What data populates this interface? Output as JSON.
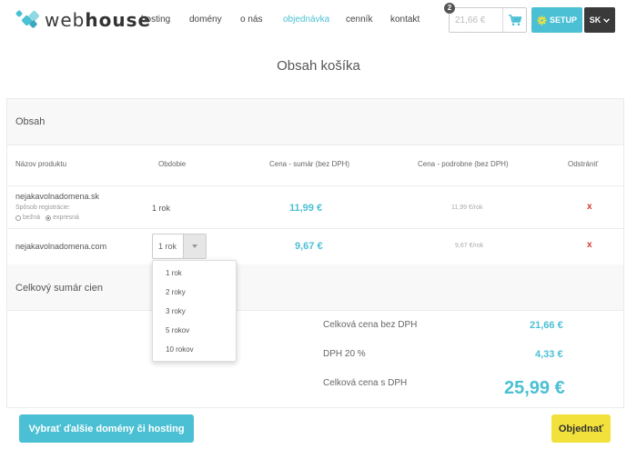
{
  "header": {
    "logo_text_light": "web",
    "logo_text_bold": "house",
    "nav": [
      {
        "label": "hosting",
        "active": false
      },
      {
        "label": "domény",
        "active": false
      },
      {
        "label": "o nás",
        "active": false
      },
      {
        "label": "objednávka",
        "active": true
      },
      {
        "label": "cenník",
        "active": false
      },
      {
        "label": "kontakt",
        "active": false
      }
    ],
    "cart_badge": "2",
    "cart_amount": "21,66 €",
    "setup_label": "SETUP",
    "lang_label": "SK",
    "cart_icon": "cart-icon",
    "setup_icon": "gear-icon"
  },
  "page_title": "Obsah košíka",
  "content": {
    "section_title": "Obsah",
    "columns": [
      "Názov produktu",
      "Obdobie",
      "Cena - sumár (bez DPH)",
      "Cena - podrobne (bez DPH)",
      "Odstrániť"
    ],
    "rows": [
      {
        "product": "nejakavolnadomena.sk",
        "reg_label": "Spôsob registrácie:",
        "reg_options": [
          "bežná",
          "expresná"
        ],
        "reg_selected": "expresná",
        "period": "1 rok",
        "price_total": "11,99 €",
        "price_detail": "11,99 €/rok",
        "remove": "x"
      },
      {
        "product": "nejakavolnadomena.com",
        "period": "1 rok",
        "price_total": "9,67 €",
        "price_detail": "9,67 €/rok",
        "remove": "x"
      }
    ],
    "dropdown_options": [
      "1 rok",
      "2 roky",
      "3 roky",
      "5 rokov",
      "10 rokov"
    ]
  },
  "summary": {
    "section_title": "Celkový sumár cien",
    "items": [
      {
        "label": "Celková cena bez DPH",
        "value": "21,66 €"
      },
      {
        "label": "DPH 20 %",
        "value": "4,33 €"
      },
      {
        "label": "Celková cena s DPH",
        "value": "25,99 €"
      }
    ]
  },
  "actions": {
    "more_label": "Vybrať ďalšie domény či hosting",
    "order_label": "Objednať"
  },
  "colors": {
    "accent": "#4bc0d4",
    "order_button": "#f2e13a",
    "remove": "#d43a2f",
    "dark": "#3a3a3a"
  }
}
